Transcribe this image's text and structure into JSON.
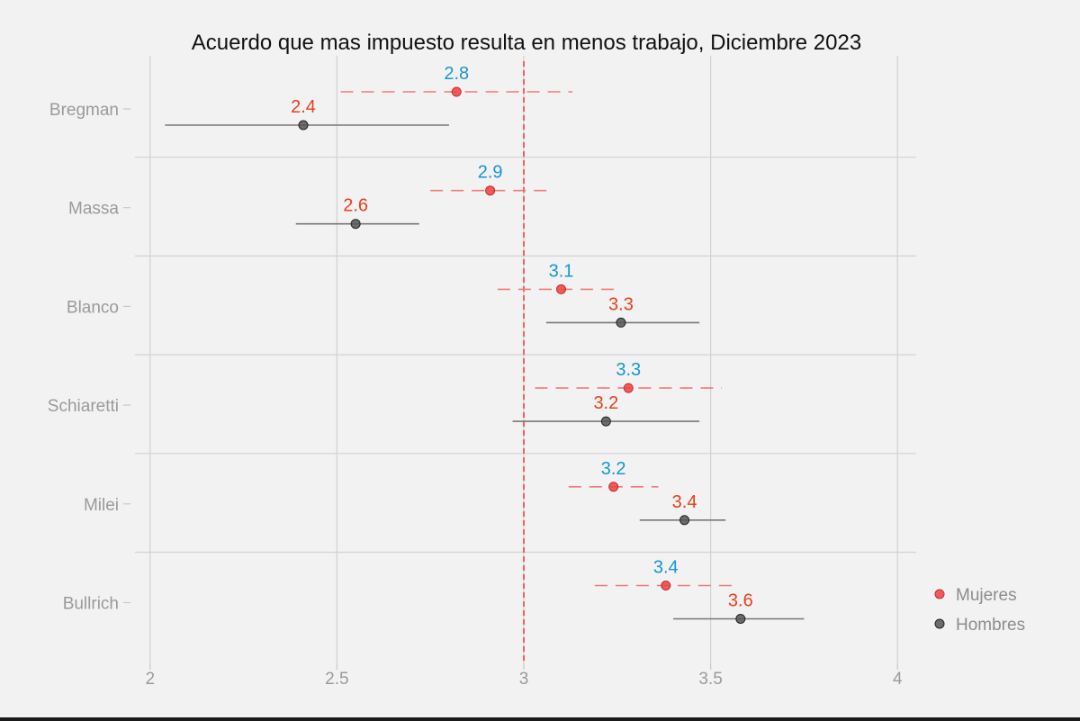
{
  "chart_data": {
    "type": "dot-errorbar",
    "title": "Acuerdo que mas impuesto resulta en menos trabajo, Diciembre 2023",
    "xlabel": "",
    "ylabel": "",
    "xlim": [
      1.95,
      4.05
    ],
    "xticks": [
      "2",
      "2.5",
      "3",
      "3.5",
      "4"
    ],
    "reference_line": 3,
    "grid": true,
    "legend_position": "right",
    "categories": [
      "Bregman",
      "Massa",
      "Blanco",
      "Schiaretti",
      "Milei",
      "Bullrich"
    ],
    "series": [
      {
        "name": "Mujeres",
        "color": "#f0413f",
        "label_color": "#1696d2",
        "line_style": "dashed",
        "points": [
          {
            "estimate": 2.82,
            "lower": 2.51,
            "upper": 3.13,
            "label": "2.8"
          },
          {
            "estimate": 2.91,
            "lower": 2.75,
            "upper": 3.07,
            "label": "2.9"
          },
          {
            "estimate": 3.1,
            "lower": 2.93,
            "upper": 3.25,
            "label": "3.1"
          },
          {
            "estimate": 3.28,
            "lower": 3.03,
            "upper": 3.53,
            "label": "3.3"
          },
          {
            "estimate": 3.24,
            "lower": 3.12,
            "upper": 3.36,
            "label": "3.2"
          },
          {
            "estimate": 3.38,
            "lower": 3.19,
            "upper": 3.57,
            "label": "3.4"
          }
        ]
      },
      {
        "name": "Hombres",
        "color": "#555555",
        "label_color": "#e8401c",
        "line_style": "solid",
        "points": [
          {
            "estimate": 2.41,
            "lower": 2.04,
            "upper": 2.8,
            "label": "2.4"
          },
          {
            "estimate": 2.55,
            "lower": 2.39,
            "upper": 2.72,
            "label": "2.6"
          },
          {
            "estimate": 3.26,
            "lower": 3.06,
            "upper": 3.47,
            "label": "3.3"
          },
          {
            "estimate": 3.22,
            "lower": 2.97,
            "upper": 3.47,
            "label": "3.2"
          },
          {
            "estimate": 3.43,
            "lower": 3.31,
            "upper": 3.54,
            "label": "3.4"
          },
          {
            "estimate": 3.58,
            "lower": 3.4,
            "upper": 3.75,
            "label": "3.6"
          }
        ]
      }
    ]
  }
}
